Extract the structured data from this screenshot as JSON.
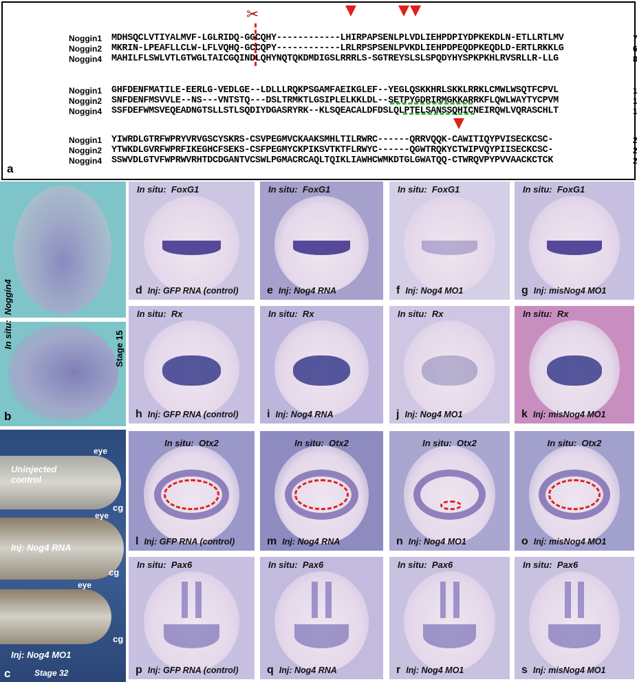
{
  "panel_a": {
    "label": "a",
    "rows": [
      [
        {
          "name": "Noggin1",
          "seq": "MDHSQCLVTIYALMVF-LGLRIDQ-GGCQHY------------LHIRPAPSENLPLVDLIEHPDPIYDPKEKDLN-ETLLRTLMV",
          "num": "70"
        },
        {
          "name": "Noggin2",
          "seq": "MKRIN-LPEAFLLCLW-LFLVQHQ-GCCQPY------------LRLRPSPSENLPVKDLIEHPDPEQDPKEQDLD-ERTLRKKLG",
          "num": "69"
        },
        {
          "name": "Noggin4",
          "seq": "MAHILFLSWLVTLGTWGLTAICGQINDLQHYNQTQKDMDIGSLRRRLS-SGTREYSLSLSPQDYHYSPKPKHLRVSRLLR-LLG",
          "num": "82"
        }
      ],
      [
        {
          "name": "Noggin1",
          "seq": "GHFDENFMATILE-EERLG-VEDLGE--LDLLLRQKPSGAMFAEIKGLEF--YEGLQSKKHRLSKKLRRKLCMWLWSQTFCPVL",
          "num": "148"
        },
        {
          "name": "Noggin2",
          "seq": "SNFDENFMSVVLE--NS---VNTSTQ---DSLTRMKTLGSIPLELKKLDL--SETPYGDRIRMGKKARRKFLQWLWAYTYCPVM",
          "num": "143"
        },
        {
          "name": "Noggin4",
          "seq": "SSFDEFWMSVEQEADNGTSLLSTLSQDIYDGASRYRK--KLSQEACALDFDSLQLPTELSANSSQHICNEIRQWLVQRASCHLT",
          "num": "164"
        }
      ],
      [
        {
          "name": "Noggin1",
          "seq": "YIWRDLGTRFWPRYVRVGSCYSKRS-CSVPEGMVCKAAKSMHLTILRWRC------QRRVQQK-CAWITIQYPVISECKCSC-",
          "num": "222"
        },
        {
          "name": "Noggin2",
          "seq": "YTWKDLGVRFWPRFIKEGHCFSEKS-CSFPEGMYCKPIKSVTKTFLRWYC------QGWTRQKYCTWIPVQYPIISECKCSC-",
          "num": "218"
        },
        {
          "name": "Noggin4",
          "seq": "SSWVDLGTVFWPRWVRHTDCDGANTVCSWLPGMACRCAQLTQIKLIAWHCWMKDTGLGWATQQ-CTWRQVPYPVVAACKCTCK",
          "num": "246"
        }
      ]
    ]
  },
  "panel_b": {
    "label": "b",
    "insitu": "In situ:  Noggin4",
    "stage": "Stage 15"
  },
  "panel_c": {
    "label": "c",
    "stage": "Stage 32",
    "eye": "eye",
    "cg": "cg",
    "uninjected": "Uninjected control",
    "inj_rna": "Inj: Nog4 RNA",
    "inj_mo": "Inj: Nog4 MO1"
  },
  "grid": [
    {
      "insitu": "In situ:  FoxG1",
      "panels": [
        {
          "l": "d",
          "inj": "Inj: GFP RNA (control)"
        },
        {
          "l": "e",
          "inj": "Inj: Nog4 RNA"
        },
        {
          "l": "f",
          "inj": "Inj: Nog4 MO1"
        },
        {
          "l": "g",
          "inj": "Inj: misNog4 MO1"
        }
      ]
    },
    {
      "insitu": "In situ:  Rx",
      "panels": [
        {
          "l": "h",
          "inj": "Inj: GFP RNA (control)"
        },
        {
          "l": "i",
          "inj": "Inj: Nog4 RNA"
        },
        {
          "l": "j",
          "inj": "Inj: Nog4 MO1"
        },
        {
          "l": "k",
          "inj": "Inj: misNog4 MO1"
        }
      ]
    },
    {
      "insitu": "In situ:  Otx2",
      "panels": [
        {
          "l": "l",
          "inj": "Inj: GFP RNA (control)"
        },
        {
          "l": "m",
          "inj": "Inj: Nog4 RNA"
        },
        {
          "l": "n",
          "inj": "Inj: Nog4 MO1"
        },
        {
          "l": "o",
          "inj": "Inj: misNog4 MO1"
        }
      ]
    },
    {
      "insitu": "In situ:  Pax6",
      "panels": [
        {
          "l": "p",
          "inj": "Inj: GFP RNA (control)"
        },
        {
          "l": "q",
          "inj": "Inj: Nog4 RNA"
        },
        {
          "l": "r",
          "inj": "Inj: Nog4 MO1"
        },
        {
          "l": "s",
          "inj": "Inj: misNog4 MO1"
        }
      ]
    }
  ],
  "colors": {
    "arrow": "#e0201a",
    "cut_line": "#e0201a",
    "dashed_green": "#3cb43c",
    "highlight": "#000000",
    "otx2_outline": "#e0201a"
  },
  "icons": [
    "scissors-icon",
    "red-arrowhead-icon"
  ]
}
